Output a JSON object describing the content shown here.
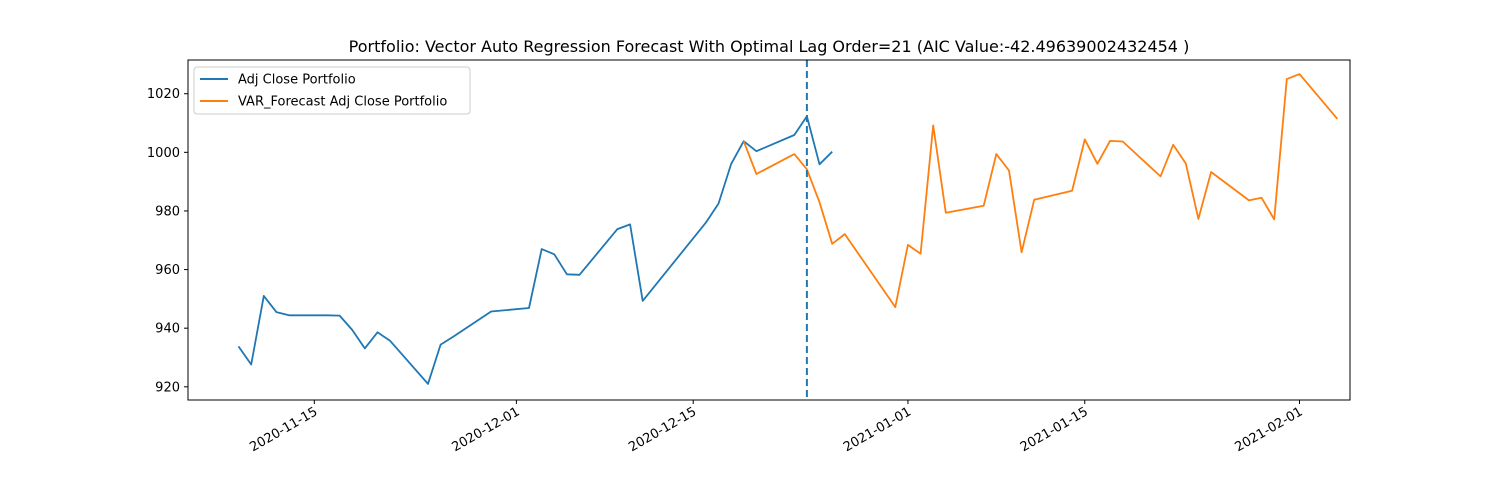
{
  "chart_data": {
    "type": "line",
    "title": "Portfolio: Vector Auto Regression Forecast With Optimal Lag Order=21 (AIC Value:-42.49639002432454 )",
    "xlabel": "",
    "ylabel": "",
    "xlim": [
      "2020-11-05",
      "2021-02-05"
    ],
    "ylim": [
      915.5,
      1031.5
    ],
    "x_ticks": [
      "2020-11-15",
      "2020-12-01",
      "2020-12-15",
      "2021-01-01",
      "2021-01-15",
      "2021-02-01"
    ],
    "y_ticks": [
      920,
      940,
      960,
      980,
      1000,
      1020
    ],
    "grid": false,
    "legend_position": "top-left",
    "forecast_start_marker": "2020-12-24",
    "series": [
      {
        "name": "Adj Close Portfolio",
        "color": "#1f77b4",
        "points": [
          [
            "2020-11-09",
            933.8
          ],
          [
            "2020-11-10",
            927.6
          ],
          [
            "2020-11-11",
            951.0
          ],
          [
            "2020-11-12",
            945.5
          ],
          [
            "2020-11-13",
            944.4
          ],
          [
            "2020-11-16",
            944.4
          ],
          [
            "2020-11-17",
            944.3
          ],
          [
            "2020-11-18",
            939.4
          ],
          [
            "2020-11-19",
            933.1
          ],
          [
            "2020-11-20",
            938.6
          ],
          [
            "2020-11-21",
            935.7
          ],
          [
            "2020-11-24",
            921.0
          ],
          [
            "2020-11-25",
            934.4
          ],
          [
            "2020-11-26",
            937.1
          ],
          [
            "2020-11-29",
            945.7
          ],
          [
            "2020-12-02",
            946.9
          ],
          [
            "2020-12-03",
            967.0
          ],
          [
            "2020-12-04",
            965.2
          ],
          [
            "2020-12-05",
            958.4
          ],
          [
            "2020-12-06",
            958.2
          ],
          [
            "2020-12-09",
            973.8
          ],
          [
            "2020-12-10",
            975.4
          ],
          [
            "2020-12-11",
            949.3
          ],
          [
            "2020-12-16",
            976.0
          ],
          [
            "2020-12-17",
            982.5
          ],
          [
            "2020-12-18",
            996.0
          ],
          [
            "2020-12-19",
            1003.8
          ],
          [
            "2020-12-20",
            1000.4
          ],
          [
            "2020-12-23",
            1005.9
          ],
          [
            "2020-12-24",
            1012.3
          ],
          [
            "2020-12-25",
            995.9
          ],
          [
            "2020-12-26",
            1000.2
          ]
        ]
      },
      {
        "name": "VAR_Forecast Adj Close Portfolio",
        "color": "#ff7f0e",
        "points": [
          [
            "2020-12-19",
            1003.8
          ],
          [
            "2020-12-20",
            992.6
          ],
          [
            "2020-12-23",
            999.4
          ],
          [
            "2020-12-24",
            994.2
          ],
          [
            "2020-12-25",
            983.0
          ],
          [
            "2020-12-26",
            968.8
          ],
          [
            "2020-12-27",
            972.1
          ],
          [
            "2020-12-31",
            947.2
          ],
          [
            "2021-01-01",
            968.4
          ],
          [
            "2021-01-02",
            965.4
          ],
          [
            "2021-01-03",
            1009.2
          ],
          [
            "2021-01-04",
            979.4
          ],
          [
            "2021-01-07",
            981.8
          ],
          [
            "2021-01-08",
            999.4
          ],
          [
            "2021-01-09",
            993.8
          ],
          [
            "2021-01-10",
            965.9
          ],
          [
            "2021-01-11",
            983.8
          ],
          [
            "2021-01-14",
            986.9
          ],
          [
            "2021-01-15",
            1004.4
          ],
          [
            "2021-01-16",
            996.1
          ],
          [
            "2021-01-17",
            1003.9
          ],
          [
            "2021-01-18",
            1003.7
          ],
          [
            "2021-01-21",
            991.8
          ],
          [
            "2021-01-22",
            1002.6
          ],
          [
            "2021-01-23",
            996.2
          ],
          [
            "2021-01-24",
            977.3
          ],
          [
            "2021-01-25",
            993.3
          ],
          [
            "2021-01-28",
            983.6
          ],
          [
            "2021-01-29",
            984.5
          ],
          [
            "2021-01-30",
            977.1
          ],
          [
            "2021-01-31",
            1025.0
          ],
          [
            "2021-02-01",
            1026.7
          ],
          [
            "2021-02-04",
            1011.4
          ]
        ]
      }
    ]
  }
}
